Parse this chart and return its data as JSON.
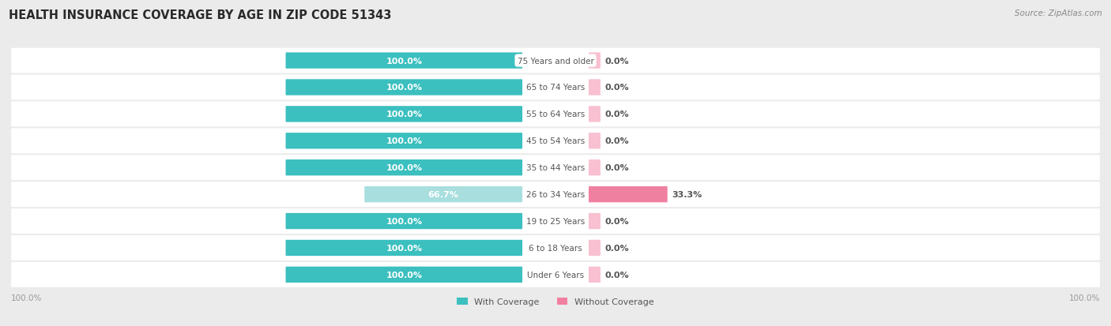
{
  "title": "HEALTH INSURANCE COVERAGE BY AGE IN ZIP CODE 51343",
  "source": "Source: ZipAtlas.com",
  "categories": [
    "Under 6 Years",
    "6 to 18 Years",
    "19 to 25 Years",
    "26 to 34 Years",
    "35 to 44 Years",
    "45 to 54 Years",
    "55 to 64 Years",
    "65 to 74 Years",
    "75 Years and older"
  ],
  "with_coverage": [
    100.0,
    100.0,
    100.0,
    66.7,
    100.0,
    100.0,
    100.0,
    100.0,
    100.0
  ],
  "without_coverage": [
    0.0,
    0.0,
    0.0,
    33.3,
    0.0,
    0.0,
    0.0,
    0.0,
    0.0
  ],
  "color_with": "#3bbfbf",
  "color_without": "#f080a0",
  "color_with_light": "#a8dede",
  "color_without_light": "#f8c0d0",
  "bg_color": "#ebebeb",
  "title_fontsize": 10.5,
  "source_fontsize": 7.5,
  "label_fontsize": 8,
  "legend_fontsize": 8,
  "axis_label_color": "#999999",
  "text_color_on_bar": "#ffffff",
  "text_color_label": "#555555"
}
